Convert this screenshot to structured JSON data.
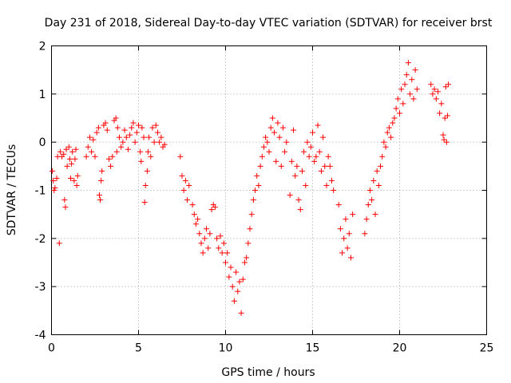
{
  "chart_data": {
    "type": "scatter",
    "title": "Day 231 of 2018, Sidereal Day-to-day VTEC variation (SDTVAR) for receiver brst",
    "xlabel": "GPS time / hours",
    "ylabel": "SDTVAR / TECUs",
    "xlim": [
      0,
      25
    ],
    "ylim": [
      -4,
      2
    ],
    "xticks": [
      "0",
      "5",
      "10",
      "15",
      "20",
      "25"
    ],
    "yticks": [
      "2",
      "1",
      "0",
      "-1",
      "-2",
      "-3",
      "-4"
    ],
    "grid": true,
    "marker": "plus",
    "series_color": "#ff0000",
    "series": [
      {
        "name": "SDTVAR",
        "points": [
          [
            0.05,
            -0.6
          ],
          [
            0.1,
            -0.8
          ],
          [
            0.15,
            -1.0
          ],
          [
            0.2,
            -0.95
          ],
          [
            0.3,
            -0.75
          ],
          [
            0.35,
            -0.3
          ],
          [
            0.45,
            -2.1
          ],
          [
            0.5,
            -0.2
          ],
          [
            0.6,
            -0.3
          ],
          [
            0.7,
            -0.25
          ],
          [
            0.75,
            -1.2
          ],
          [
            0.8,
            -1.35
          ],
          [
            0.85,
            -0.15
          ],
          [
            0.9,
            -0.5
          ],
          [
            1.0,
            -0.1
          ],
          [
            1.05,
            -0.35
          ],
          [
            1.1,
            -0.75
          ],
          [
            1.15,
            -0.45
          ],
          [
            1.2,
            -0.2
          ],
          [
            1.3,
            -0.8
          ],
          [
            1.35,
            -0.35
          ],
          [
            1.4,
            -0.15
          ],
          [
            1.45,
            -0.9
          ],
          [
            1.5,
            -0.7
          ],
          [
            2.0,
            -0.3
          ],
          [
            2.1,
            -0.1
          ],
          [
            2.2,
            0.1
          ],
          [
            2.3,
            -0.2
          ],
          [
            2.4,
            0.05
          ],
          [
            2.5,
            -0.3
          ],
          [
            2.6,
            0.2
          ],
          [
            2.7,
            0.3
          ],
          [
            2.75,
            -1.1
          ],
          [
            2.8,
            -1.2
          ],
          [
            2.85,
            -0.8
          ],
          [
            2.9,
            -0.6
          ],
          [
            3.0,
            0.35
          ],
          [
            3.1,
            0.4
          ],
          [
            3.2,
            0.25
          ],
          [
            3.3,
            -0.35
          ],
          [
            3.4,
            -0.5
          ],
          [
            3.5,
            -0.3
          ],
          [
            3.6,
            0.45
          ],
          [
            3.7,
            0.5
          ],
          [
            3.75,
            -0.2
          ],
          [
            3.8,
            0.3
          ],
          [
            3.9,
            0.1
          ],
          [
            4.0,
            -0.1
          ],
          [
            4.1,
            0.0
          ],
          [
            4.2,
            0.25
          ],
          [
            4.3,
            0.1
          ],
          [
            4.4,
            -0.15
          ],
          [
            4.5,
            0.15
          ],
          [
            4.6,
            0.3
          ],
          [
            4.7,
            0.4
          ],
          [
            4.8,
            0.0
          ],
          [
            4.9,
            0.2
          ],
          [
            5.0,
            0.35
          ],
          [
            5.1,
            -0.2
          ],
          [
            5.15,
            -0.4
          ],
          [
            5.2,
            0.3
          ],
          [
            5.3,
            0.1
          ],
          [
            5.35,
            -1.25
          ],
          [
            5.4,
            -0.9
          ],
          [
            5.5,
            -0.6
          ],
          [
            5.55,
            -0.2
          ],
          [
            5.6,
            0.1
          ],
          [
            5.7,
            -0.3
          ],
          [
            5.8,
            0.3
          ],
          [
            5.9,
            0.0
          ],
          [
            6.0,
            0.35
          ],
          [
            6.1,
            0.2
          ],
          [
            6.2,
            0.0
          ],
          [
            6.3,
            0.1
          ],
          [
            6.4,
            -0.1
          ],
          [
            6.5,
            -0.05
          ],
          [
            7.4,
            -0.3
          ],
          [
            7.5,
            -0.7
          ],
          [
            7.6,
            -1.0
          ],
          [
            7.7,
            -0.8
          ],
          [
            7.8,
            -1.2
          ],
          [
            7.9,
            -0.9
          ],
          [
            8.1,
            -1.3
          ],
          [
            8.2,
            -1.5
          ],
          [
            8.3,
            -1.7
          ],
          [
            8.4,
            -1.6
          ],
          [
            8.5,
            -1.9
          ],
          [
            8.6,
            -2.1
          ],
          [
            8.7,
            -2.3
          ],
          [
            8.8,
            -2.0
          ],
          [
            8.9,
            -1.8
          ],
          [
            9.0,
            -2.2
          ],
          [
            9.1,
            -1.9
          ],
          [
            9.2,
            -1.4
          ],
          [
            9.3,
            -1.3
          ],
          [
            9.4,
            -1.35
          ],
          [
            9.5,
            -2.0
          ],
          [
            9.6,
            -2.2
          ],
          [
            9.7,
            -1.95
          ],
          [
            9.8,
            -2.3
          ],
          [
            9.9,
            -2.1
          ],
          [
            10.0,
            -2.5
          ],
          [
            10.1,
            -2.3
          ],
          [
            10.2,
            -2.8
          ],
          [
            10.3,
            -2.6
          ],
          [
            10.4,
            -3.0
          ],
          [
            10.5,
            -3.3
          ],
          [
            10.6,
            -2.7
          ],
          [
            10.7,
            -3.1
          ],
          [
            10.8,
            -2.9
          ],
          [
            10.9,
            -3.55
          ],
          [
            11.0,
            -2.85
          ],
          [
            11.1,
            -2.5
          ],
          [
            11.2,
            -2.4
          ],
          [
            11.3,
            -2.1
          ],
          [
            11.4,
            -1.8
          ],
          [
            11.5,
            -1.5
          ],
          [
            11.6,
            -1.2
          ],
          [
            11.7,
            -1.0
          ],
          [
            11.8,
            -0.7
          ],
          [
            11.9,
            -0.9
          ],
          [
            12.0,
            -0.5
          ],
          [
            12.1,
            -0.3
          ],
          [
            12.2,
            -0.1
          ],
          [
            12.3,
            0.1
          ],
          [
            12.4,
            0.0
          ],
          [
            12.5,
            -0.2
          ],
          [
            12.6,
            0.3
          ],
          [
            12.7,
            0.5
          ],
          [
            12.8,
            0.2
          ],
          [
            12.9,
            -0.4
          ],
          [
            13.0,
            0.4
          ],
          [
            13.1,
            0.1
          ],
          [
            13.2,
            -0.5
          ],
          [
            13.3,
            0.3
          ],
          [
            13.4,
            -0.2
          ],
          [
            13.5,
            0.0
          ],
          [
            13.7,
            -1.1
          ],
          [
            13.8,
            -0.4
          ],
          [
            13.9,
            0.25
          ],
          [
            14.0,
            -0.7
          ],
          [
            14.1,
            -0.5
          ],
          [
            14.2,
            -1.2
          ],
          [
            14.3,
            -1.4
          ],
          [
            14.4,
            -0.6
          ],
          [
            14.5,
            -0.2
          ],
          [
            14.6,
            -0.9
          ],
          [
            14.7,
            0.0
          ],
          [
            14.8,
            -0.3
          ],
          [
            14.9,
            -0.1
          ],
          [
            15.0,
            0.2
          ],
          [
            15.1,
            -0.4
          ],
          [
            15.2,
            -0.3
          ],
          [
            15.3,
            0.35
          ],
          [
            15.4,
            -0.2
          ],
          [
            15.5,
            -0.6
          ],
          [
            15.6,
            0.1
          ],
          [
            15.7,
            -0.5
          ],
          [
            15.8,
            -0.9
          ],
          [
            15.9,
            -0.3
          ],
          [
            16.0,
            -0.5
          ],
          [
            16.1,
            -0.8
          ],
          [
            16.2,
            -1.0
          ],
          [
            16.5,
            -1.3
          ],
          [
            16.6,
            -1.8
          ],
          [
            16.7,
            -2.3
          ],
          [
            16.8,
            -2.0
          ],
          [
            16.9,
            -1.6
          ],
          [
            17.0,
            -2.2
          ],
          [
            17.1,
            -1.9
          ],
          [
            17.2,
            -2.4
          ],
          [
            17.3,
            -1.5
          ],
          [
            18.0,
            -1.9
          ],
          [
            18.1,
            -1.6
          ],
          [
            18.2,
            -1.3
          ],
          [
            18.3,
            -1.0
          ],
          [
            18.4,
            -1.2
          ],
          [
            18.5,
            -0.8
          ],
          [
            18.6,
            -1.5
          ],
          [
            18.7,
            -0.6
          ],
          [
            18.8,
            -0.9
          ],
          [
            18.9,
            -0.5
          ],
          [
            19.0,
            -0.3
          ],
          [
            19.1,
            0.0
          ],
          [
            19.2,
            -0.1
          ],
          [
            19.3,
            0.2
          ],
          [
            19.4,
            0.3
          ],
          [
            19.5,
            0.1
          ],
          [
            19.6,
            0.4
          ],
          [
            19.7,
            0.5
          ],
          [
            19.8,
            0.7
          ],
          [
            19.9,
            0.9
          ],
          [
            20.0,
            0.6
          ],
          [
            20.1,
            1.1
          ],
          [
            20.2,
            0.8
          ],
          [
            20.3,
            1.2
          ],
          [
            20.4,
            1.4
          ],
          [
            20.5,
            1.65
          ],
          [
            20.6,
            1.0
          ],
          [
            20.7,
            1.3
          ],
          [
            20.8,
            0.9
          ],
          [
            20.9,
            1.5
          ],
          [
            21.0,
            1.1
          ],
          [
            21.8,
            1.2
          ],
          [
            21.9,
            1.0
          ],
          [
            22.0,
            1.1
          ],
          [
            22.1,
            0.9
          ],
          [
            22.2,
            1.05
          ],
          [
            22.3,
            0.6
          ],
          [
            22.4,
            0.8
          ],
          [
            22.5,
            0.15
          ],
          [
            22.55,
            0.05
          ],
          [
            22.6,
            0.5
          ],
          [
            22.65,
            1.15
          ],
          [
            22.7,
            0.0
          ],
          [
            22.75,
            0.55
          ],
          [
            22.8,
            1.2
          ]
        ]
      }
    ]
  }
}
